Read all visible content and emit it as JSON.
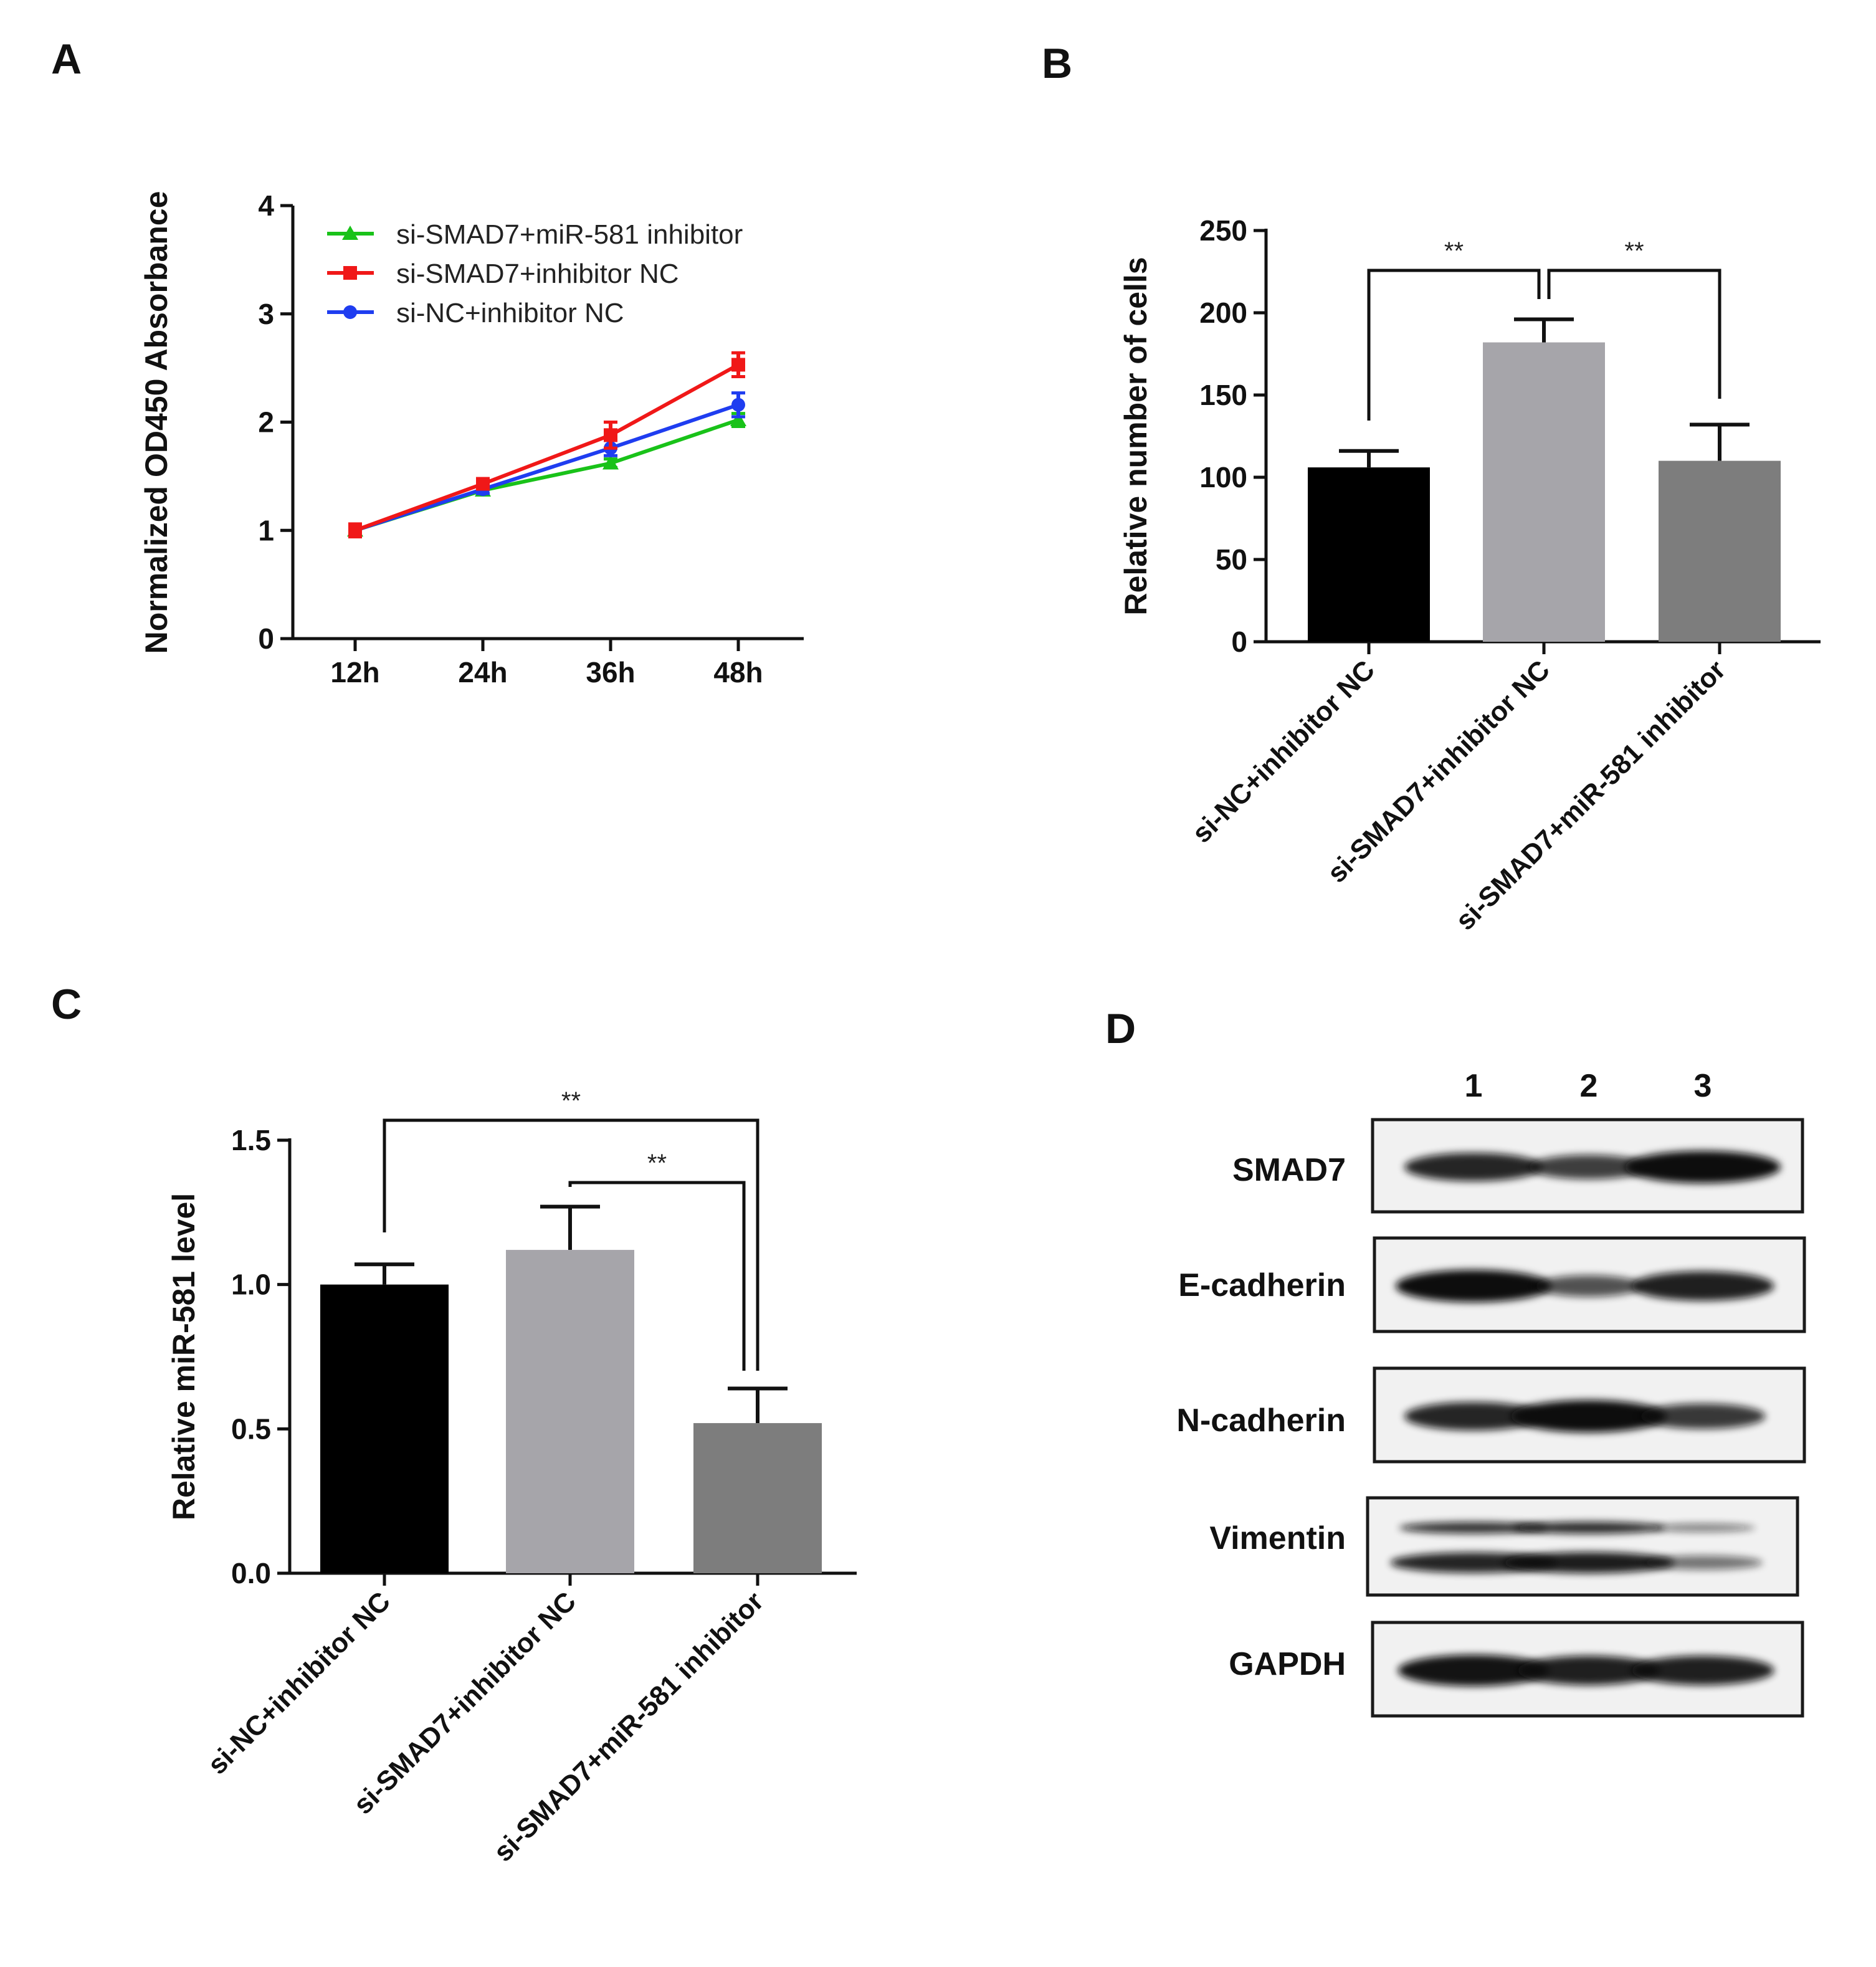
{
  "panels": {
    "a": {
      "letter": "A"
    },
    "b": {
      "letter": "B"
    },
    "c": {
      "letter": "C"
    },
    "d": {
      "letter": "D"
    }
  },
  "chart_data": [
    {
      "panel": "A",
      "type": "line",
      "title": "",
      "xlabel": "",
      "ylabel": "Normalized OD450 Absorbance",
      "categories": [
        "12h",
        "24h",
        "36h",
        "48h"
      ],
      "ylim": [
        0,
        4
      ],
      "yticks": [
        0,
        1,
        2,
        3,
        4
      ],
      "legend_position": "top-left",
      "series": [
        {
          "name": "si-SMAD7+miR-581 inhibitor",
          "color": "#19c219",
          "marker": "triangle",
          "values": [
            1.0,
            1.37,
            1.62,
            2.02
          ],
          "errors": [
            0.04,
            0.03,
            0.04,
            0.06
          ]
        },
        {
          "name": "si-SMAD7+inhibitor NC",
          "color": "#f01818",
          "marker": "square",
          "values": [
            1.0,
            1.43,
            1.88,
            2.53
          ],
          "errors": [
            0.06,
            0.04,
            0.12,
            0.11
          ]
        },
        {
          "name": "si-NC+inhibitor NC",
          "color": "#1f3df0",
          "marker": "circle",
          "values": [
            1.0,
            1.38,
            1.76,
            2.16
          ],
          "errors": [
            0.05,
            0.04,
            0.07,
            0.11
          ]
        }
      ]
    },
    {
      "panel": "B",
      "type": "bar",
      "title": "",
      "xlabel": "",
      "ylabel": "Relative number of cells",
      "categories": [
        "si-NC+inhibitor NC",
        "si-SMAD7+inhibitor NC",
        "si-SMAD7+miR-581 inhibitor"
      ],
      "values": [
        106,
        182,
        110
      ],
      "errors": [
        10,
        14,
        22
      ],
      "colors": [
        "#000000",
        "#a6a5aa",
        "#7d7d7d"
      ],
      "ylim": [
        0,
        250
      ],
      "yticks": [
        0,
        50,
        100,
        150,
        200,
        250
      ],
      "significance": [
        {
          "between": [
            0,
            1
          ],
          "label": "**"
        },
        {
          "between": [
            1,
            2
          ],
          "label": "**"
        }
      ]
    },
    {
      "panel": "C",
      "type": "bar",
      "title": "",
      "xlabel": "",
      "ylabel": "Relative miR-581 level",
      "categories": [
        "si-NC+inhibitor NC",
        "si-SMAD7+inhibitor NC",
        "si-SMAD7+miR-581 inhibitor"
      ],
      "values": [
        1.0,
        1.12,
        0.52
      ],
      "errors": [
        0.07,
        0.15,
        0.12
      ],
      "colors": [
        "#000000",
        "#a6a5aa",
        "#7d7d7d"
      ],
      "ylim": [
        0,
        1.5
      ],
      "yticks": [
        "0.0",
        "0.5",
        "1.0",
        "1.5"
      ],
      "significance": [
        {
          "between": [
            0,
            2
          ],
          "label": "**"
        },
        {
          "between": [
            1,
            2
          ],
          "label": "**"
        }
      ]
    }
  ],
  "western_blot": {
    "panel": "D",
    "lanes": [
      "1",
      "2",
      "3"
    ],
    "rows": [
      {
        "label": "SMAD7",
        "intensity": [
          0.8,
          0.6,
          1.0
        ],
        "double_band": false
      },
      {
        "label": "E-cadherin",
        "intensity": [
          1.0,
          0.45,
          0.85
        ],
        "double_band": false
      },
      {
        "label": "N-cadherin",
        "intensity": [
          0.8,
          1.0,
          0.65
        ],
        "double_band": false
      },
      {
        "label": "Vimentin",
        "intensity": [
          0.85,
          0.9,
          0.35
        ],
        "double_band": true
      },
      {
        "label": "GAPDH",
        "intensity": [
          0.95,
          0.85,
          0.85
        ],
        "double_band": false
      }
    ]
  }
}
